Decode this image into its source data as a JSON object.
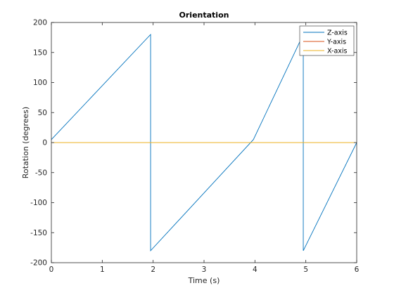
{
  "chart_data": {
    "type": "line",
    "title": "Orientation",
    "xlabel": "Time (s)",
    "ylabel": "Rotation (degrees)",
    "xlim": [
      0,
      6
    ],
    "ylim": [
      -200,
      200
    ],
    "xticks": [
      0,
      1,
      2,
      3,
      4,
      5,
      6
    ],
    "yticks": [
      -200,
      -150,
      -100,
      -50,
      0,
      50,
      100,
      150,
      200
    ],
    "grid": false,
    "legend_position": "top-right",
    "series": [
      {
        "name": "Z-axis",
        "color": "#0072BD",
        "x": [
          0,
          1.95,
          1.95,
          3.97,
          4.95,
          4.95,
          6
        ],
        "y": [
          5,
          180,
          -180,
          5,
          180,
          -180,
          0
        ]
      },
      {
        "name": "Y-axis",
        "color": "#D95319",
        "x": [
          0,
          6
        ],
        "y": [
          0,
          0
        ]
      },
      {
        "name": "X-axis",
        "color": "#EDB120",
        "x": [
          0,
          6
        ],
        "y": [
          0,
          0
        ]
      }
    ]
  }
}
